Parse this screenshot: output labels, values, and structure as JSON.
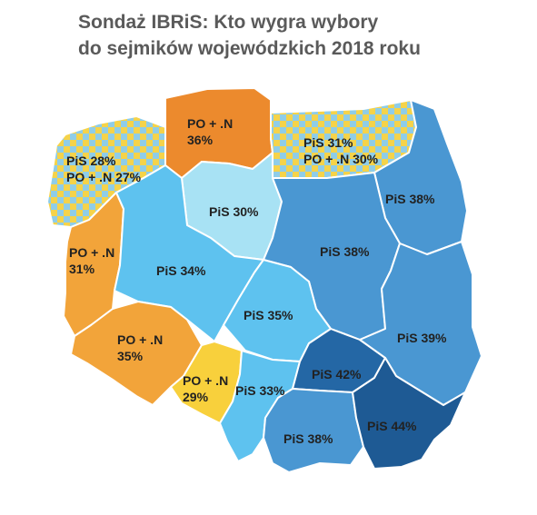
{
  "title": {
    "line1": "Sondaż IBRiS: Kto wygra wybory",
    "line2": "do sejmików wojewódzkich 2018 roku"
  },
  "colors": {
    "po_orange_dark": "#ec8a2d",
    "po_orange": "#f2a43a",
    "po_yellow": "#f8d03c",
    "mixed_yellow": "#f5d34a",
    "mixed_blue": "#8fcde8",
    "pis_very_light": "#a8e2f4",
    "pis_light": "#5ec2ef",
    "pis_medium": "#4a97d2",
    "pis_dark": "#2467a5",
    "pis_darkest": "#1e5a94",
    "border": "#ffffff"
  },
  "regions": [
    {
      "id": "pomorskie",
      "lines": [
        "PO + .N",
        "36%"
      ],
      "fill": "po_orange_dark"
    },
    {
      "id": "zachodniopomorskie",
      "lines": [
        "PiS 28%",
        "PO + .N 27%"
      ],
      "fill": "checker"
    },
    {
      "id": "warminsko-mazurskie",
      "lines": [
        "PiS 31%",
        "PO + .N 30%"
      ],
      "fill": "checker"
    },
    {
      "id": "podlaskie",
      "lines": [
        "PiS 38%"
      ],
      "fill": "pis_medium"
    },
    {
      "id": "kujawsko-pomorskie",
      "lines": [
        "PiS 30%"
      ],
      "fill": "pis_very_light"
    },
    {
      "id": "lubuskie",
      "lines": [
        "PO + .N",
        "31%"
      ],
      "fill": "po_orange"
    },
    {
      "id": "wielkopolskie",
      "lines": [
        "PiS 34%"
      ],
      "fill": "pis_light"
    },
    {
      "id": "mazowieckie",
      "lines": [
        "PiS 38%"
      ],
      "fill": "pis_medium"
    },
    {
      "id": "lodzkie",
      "lines": [
        "PiS 35%"
      ],
      "fill": "pis_light"
    },
    {
      "id": "dolnoslaskie",
      "lines": [
        "PO + .N",
        "35%"
      ],
      "fill": "po_orange"
    },
    {
      "id": "opolskie",
      "lines": [
        "PO + .N",
        "29%"
      ],
      "fill": "po_yellow"
    },
    {
      "id": "slaskie",
      "lines": [
        "PiS 33%"
      ],
      "fill": "pis_light"
    },
    {
      "id": "swietokrzyskie",
      "lines": [
        "PiS 42%"
      ],
      "fill": "pis_dark"
    },
    {
      "id": "lubelskie",
      "lines": [
        "PiS 39%"
      ],
      "fill": "pis_medium"
    },
    {
      "id": "malopolskie",
      "lines": [
        "PiS 38%"
      ],
      "fill": "pis_medium"
    },
    {
      "id": "podkarpackie",
      "lines": [
        "PiS 44%"
      ],
      "fill": "pis_darkest"
    }
  ]
}
